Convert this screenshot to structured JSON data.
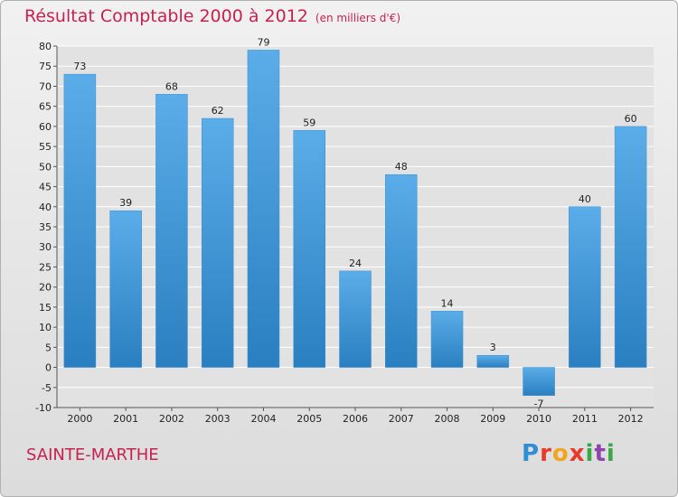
{
  "header": {
    "title": "Résultat Comptable 2000 à 2012",
    "unit": "(en milliers d'€)"
  },
  "footer": {
    "town": "SAINTE-MARTHE",
    "logo_letters": [
      "P",
      "r",
      "o",
      "x",
      "i",
      "t",
      "i"
    ]
  },
  "colors": {
    "bar_light": "#5aade8",
    "bar_dark": "#2a7fc0",
    "title": "#c8204f",
    "grid": "#ffffff"
  },
  "chart_data": {
    "type": "bar",
    "title": "Résultat Comptable 2000 à 2012",
    "subtitle": "(en milliers d'€)",
    "xlabel": "",
    "ylabel": "",
    "categories": [
      "2000",
      "2001",
      "2002",
      "2003",
      "2004",
      "2005",
      "2006",
      "2007",
      "2008",
      "2009",
      "2010",
      "2011",
      "2012"
    ],
    "values": [
      73,
      39,
      68,
      62,
      79,
      59,
      24,
      48,
      14,
      3,
      -7,
      40,
      60
    ],
    "ylim": [
      -10,
      80
    ],
    "yticks": [
      -10,
      -5,
      0,
      5,
      10,
      15,
      20,
      25,
      30,
      35,
      40,
      45,
      50,
      55,
      60,
      65,
      70,
      75,
      80
    ],
    "grid": true,
    "legend": "none"
  }
}
